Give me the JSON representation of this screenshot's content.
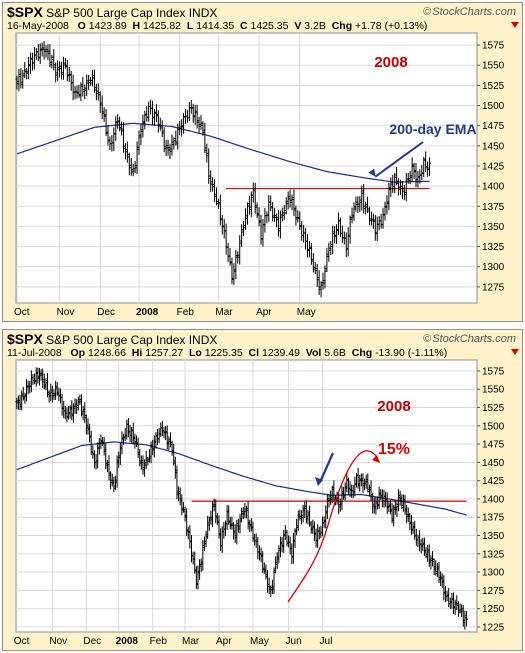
{
  "chart_data": [
    {
      "type": "bar",
      "style": "ohlc",
      "symbol": "$SPX",
      "title": "S&P 500 Large Cap Index",
      "exchange": "INDX",
      "date": "16-May-2008",
      "quote": {
        "O": "1423.89",
        "H": "1425.82",
        "L": "1414.35",
        "C": "1425.35",
        "V": "3.2B",
        "Chg": "+1.78 (+0.13%)"
      },
      "watermark": "StockCharts.com",
      "x_labels": [
        "Oct",
        "Nov",
        "Dec",
        "2008",
        "Feb",
        "Mar",
        "Apr",
        "May"
      ],
      "x_bold": [
        "2008"
      ],
      "ylim": [
        1255,
        1590
      ],
      "y_ticks": [
        1275,
        1300,
        1325,
        1350,
        1375,
        1400,
        1425,
        1450,
        1475,
        1500,
        1525,
        1550,
        1575
      ],
      "grid": true,
      "axis_right": true,
      "price_keypoints": [
        [
          0,
          1530
        ],
        [
          8,
          1555
        ],
        [
          14,
          1575
        ],
        [
          20,
          1540
        ],
        [
          25,
          1552
        ],
        [
          30,
          1510
        ],
        [
          38,
          1535
        ],
        [
          44,
          1495
        ],
        [
          48,
          1450
        ],
        [
          52,
          1480
        ],
        [
          56,
          1445
        ],
        [
          60,
          1415
        ],
        [
          64,
          1470
        ],
        [
          68,
          1500
        ],
        [
          72,
          1485
        ],
        [
          77,
          1445
        ],
        [
          82,
          1460
        ],
        [
          86,
          1480
        ],
        [
          90,
          1500
        ],
        [
          96,
          1465
        ],
        [
          99,
          1415
        ],
        [
          103,
          1385
        ],
        [
          108,
          1325
        ],
        [
          111,
          1290
        ],
        [
          115,
          1330
        ],
        [
          118,
          1360
        ],
        [
          122,
          1395
        ],
        [
          126,
          1340
        ],
        [
          130,
          1375
        ],
        [
          135,
          1355
        ],
        [
          141,
          1385
        ],
        [
          145,
          1360
        ],
        [
          149,
          1330
        ],
        [
          153,
          1300
        ],
        [
          157,
          1275
        ],
        [
          161,
          1320
        ],
        [
          166,
          1355
        ],
        [
          170,
          1325
        ],
        [
          173,
          1365
        ],
        [
          178,
          1390
        ],
        [
          182,
          1360
        ],
        [
          185,
          1345
        ],
        [
          189,
          1365
        ],
        [
          192,
          1395
        ],
        [
          195,
          1405
        ],
        [
          199,
          1395
        ],
        [
          204,
          1420
        ],
        [
          207,
          1405
        ],
        [
          210,
          1430
        ],
        [
          213,
          1425
        ]
      ],
      "series": [
        {
          "name": "200-day EMA",
          "color": "#1f2a8c",
          "points": [
            [
              0,
              1440
            ],
            [
              40,
              1473
            ],
            [
              60,
              1478
            ],
            [
              80,
              1474
            ],
            [
              100,
              1462
            ],
            [
              120,
              1446
            ],
            [
              140,
              1431
            ],
            [
              160,
              1418
            ],
            [
              180,
              1410
            ],
            [
              195,
              1405
            ],
            [
              213,
              1406
            ]
          ]
        }
      ],
      "hline": {
        "value": 1397,
        "x_from": 108,
        "x_to": 213,
        "color": "#d40000"
      },
      "annotations": [
        {
          "text": "2008",
          "color": "#c00000"
        },
        {
          "text": "200-day EMA",
          "color": "#1f3a8c",
          "arrow_to": [
            185,
            1408
          ]
        }
      ]
    },
    {
      "type": "bar",
      "style": "ohlc",
      "symbol": "$SPX",
      "title": "S&P 500 Large Cap Index",
      "exchange": "INDX",
      "date": "11-Jul-2008",
      "quote": {
        "Op": "1248.66",
        "Hi": "1257.27",
        "Lo": "1225.35",
        "Cl": "1239.49",
        "Vol": "5.6B",
        "Chg": "-13.90 (-1.11%)"
      },
      "watermark": "StockCharts.com",
      "x_labels": [
        "Oct",
        "Nov",
        "Dec",
        "2008",
        "Feb",
        "Mar",
        "Apr",
        "May",
        "Jun",
        "Jul"
      ],
      "x_bold": [
        "2008"
      ],
      "ylim": [
        1218,
        1590
      ],
      "y_ticks": [
        1225,
        1250,
        1275,
        1300,
        1325,
        1350,
        1375,
        1400,
        1425,
        1450,
        1475,
        1500,
        1525,
        1550,
        1575
      ],
      "grid": true,
      "axis_right": true,
      "price_keypoints": [
        [
          0,
          1530
        ],
        [
          8,
          1555
        ],
        [
          14,
          1575
        ],
        [
          20,
          1540
        ],
        [
          25,
          1552
        ],
        [
          30,
          1510
        ],
        [
          38,
          1535
        ],
        [
          44,
          1495
        ],
        [
          48,
          1450
        ],
        [
          52,
          1480
        ],
        [
          56,
          1445
        ],
        [
          60,
          1415
        ],
        [
          64,
          1470
        ],
        [
          68,
          1500
        ],
        [
          72,
          1485
        ],
        [
          77,
          1445
        ],
        [
          82,
          1460
        ],
        [
          86,
          1480
        ],
        [
          90,
          1500
        ],
        [
          96,
          1465
        ],
        [
          99,
          1415
        ],
        [
          103,
          1385
        ],
        [
          108,
          1325
        ],
        [
          111,
          1290
        ],
        [
          115,
          1330
        ],
        [
          118,
          1360
        ],
        [
          122,
          1395
        ],
        [
          126,
          1340
        ],
        [
          130,
          1375
        ],
        [
          135,
          1355
        ],
        [
          141,
          1385
        ],
        [
          145,
          1360
        ],
        [
          149,
          1330
        ],
        [
          153,
          1300
        ],
        [
          157,
          1275
        ],
        [
          161,
          1320
        ],
        [
          166,
          1355
        ],
        [
          170,
          1325
        ],
        [
          173,
          1365
        ],
        [
          178,
          1390
        ],
        [
          182,
          1360
        ],
        [
          185,
          1345
        ],
        [
          189,
          1365
        ],
        [
          192,
          1395
        ],
        [
          195,
          1405
        ],
        [
          199,
          1395
        ],
        [
          204,
          1420
        ],
        [
          207,
          1405
        ],
        [
          210,
          1430
        ],
        [
          213,
          1425
        ],
        [
          217,
          1415
        ],
        [
          221,
          1390
        ],
        [
          224,
          1405
        ],
        [
          228,
          1395
        ],
        [
          232,
          1380
        ],
        [
          236,
          1400
        ],
        [
          240,
          1385
        ],
        [
          244,
          1365
        ],
        [
          248,
          1340
        ],
        [
          252,
          1330
        ],
        [
          256,
          1320
        ],
        [
          259,
          1300
        ],
        [
          262,
          1290
        ],
        [
          265,
          1270
        ],
        [
          268,
          1260
        ],
        [
          272,
          1250
        ],
        [
          275,
          1245
        ],
        [
          278,
          1235
        ]
      ],
      "series": [
        {
          "name": "200-day EMA",
          "color": "#1f2a8c",
          "points": [
            [
              0,
              1440
            ],
            [
              40,
              1473
            ],
            [
              60,
              1478
            ],
            [
              80,
              1474
            ],
            [
              100,
              1462
            ],
            [
              120,
              1446
            ],
            [
              140,
              1431
            ],
            [
              160,
              1418
            ],
            [
              180,
              1410
            ],
            [
              195,
              1405
            ],
            [
              213,
              1406
            ],
            [
              230,
              1400
            ],
            [
              250,
              1392
            ],
            [
              265,
              1386
            ],
            [
              278,
              1378
            ]
          ]
        }
      ],
      "hline": {
        "value": 1397,
        "x_from": 108,
        "x_to": 278,
        "color": "#d40000"
      },
      "annotations": [
        {
          "text": "2008",
          "color": "#c00000"
        },
        {
          "text": "15%",
          "color": "#d40000"
        }
      ]
    }
  ]
}
